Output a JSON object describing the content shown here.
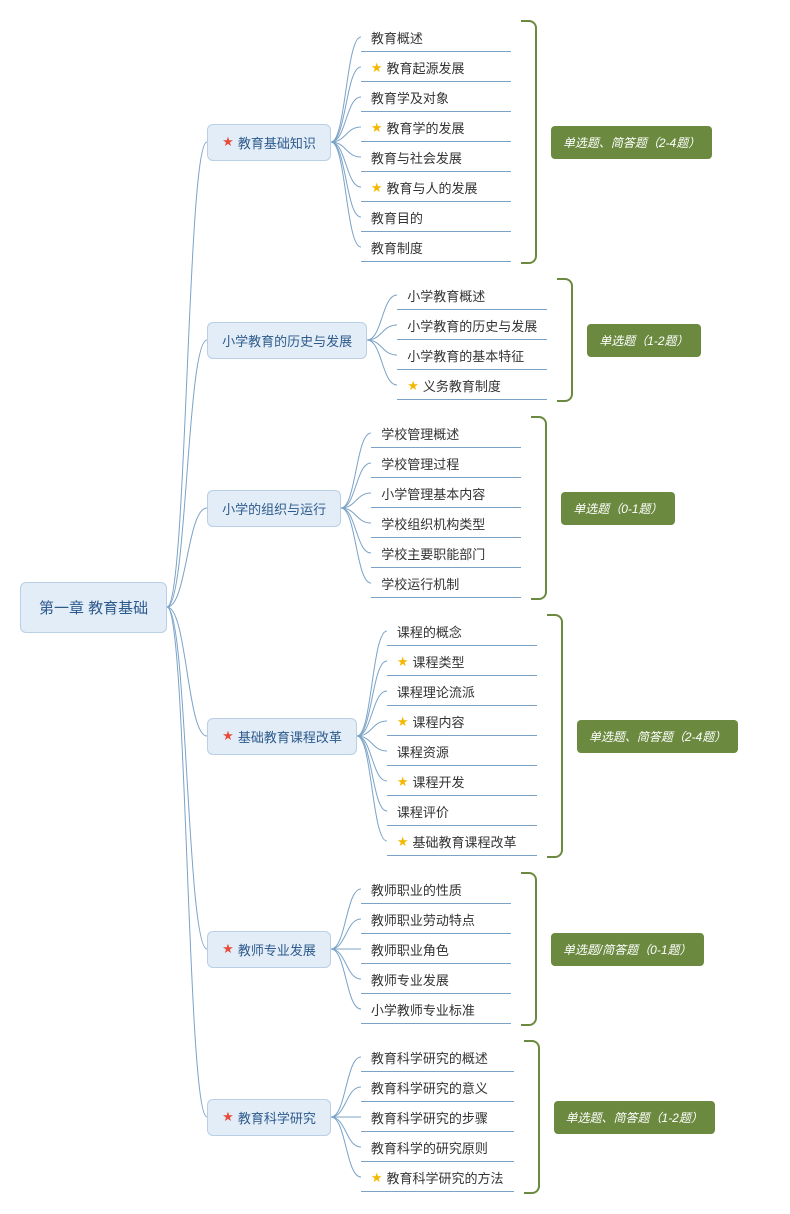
{
  "colors": {
    "node_bg": "#e3edf7",
    "node_border": "#b8cfe5",
    "node_text": "#2d5a8c",
    "line": "#7ba3c7",
    "tag_bg": "#6b8a3f",
    "tag_text": "#ffffff",
    "star_red": "#e74c3c",
    "star_yellow": "#f5b800",
    "leaf_text": "#333333",
    "background": "#ffffff"
  },
  "root": {
    "label": "第一章 教育基础"
  },
  "branches": [
    {
      "star": "red",
      "label": "教育基础知识",
      "tag": "单选题、简答题（2-4题）",
      "leaves": [
        {
          "star": null,
          "label": "教育概述"
        },
        {
          "star": "yellow",
          "label": "教育起源发展"
        },
        {
          "star": null,
          "label": "教育学及对象"
        },
        {
          "star": "yellow",
          "label": "教育学的发展"
        },
        {
          "star": null,
          "label": "教育与社会发展"
        },
        {
          "star": "yellow",
          "label": "教育与人的发展"
        },
        {
          "star": null,
          "label": "教育目的"
        },
        {
          "star": null,
          "label": "教育制度"
        }
      ]
    },
    {
      "star": null,
      "label": "小学教育的历史与发展",
      "tag": "单选题（1-2题）",
      "leaves": [
        {
          "star": null,
          "label": "小学教育概述"
        },
        {
          "star": null,
          "label": "小学教育的历史与发展"
        },
        {
          "star": null,
          "label": "小学教育的基本特征"
        },
        {
          "star": "yellow",
          "label": "义务教育制度"
        }
      ]
    },
    {
      "star": null,
      "label": "小学的组织与运行",
      "tag": "单选题（0-1题）",
      "leaves": [
        {
          "star": null,
          "label": "学校管理概述"
        },
        {
          "star": null,
          "label": "学校管理过程"
        },
        {
          "star": null,
          "label": "小学管理基本内容"
        },
        {
          "star": null,
          "label": "学校组织机构类型"
        },
        {
          "star": null,
          "label": "学校主要职能部门"
        },
        {
          "star": null,
          "label": "学校运行机制"
        }
      ]
    },
    {
      "star": "red",
      "label": "基础教育课程改革",
      "tag": "单选题、简答题（2-4题）",
      "leaves": [
        {
          "star": null,
          "label": "课程的概念"
        },
        {
          "star": "yellow",
          "label": "课程类型"
        },
        {
          "star": null,
          "label": "课程理论流派"
        },
        {
          "star": "yellow",
          "label": "课程内容"
        },
        {
          "star": null,
          "label": "课程资源"
        },
        {
          "star": "yellow",
          "label": "课程开发"
        },
        {
          "star": null,
          "label": "课程评价"
        },
        {
          "star": "yellow",
          "label": "基础教育课程改革"
        }
      ]
    },
    {
      "star": "red",
      "label": "教师专业发展",
      "tag": "单选题/简答题（0-1题）",
      "leaves": [
        {
          "star": null,
          "label": "教师职业的性质"
        },
        {
          "star": null,
          "label": "教师职业劳动特点"
        },
        {
          "star": null,
          "label": "教师职业角色"
        },
        {
          "star": null,
          "label": "教师专业发展"
        },
        {
          "star": null,
          "label": "小学教师专业标准"
        }
      ]
    },
    {
      "star": "red",
      "label": "教育科学研究",
      "tag": "单选题、简答题（1-2题）",
      "leaves": [
        {
          "star": null,
          "label": "教育科学研究的概述"
        },
        {
          "star": null,
          "label": "教育科学研究的意义"
        },
        {
          "star": null,
          "label": "教育科学研究的步骤"
        },
        {
          "star": null,
          "label": "教育科学的研究原则"
        },
        {
          "star": "yellow",
          "label": "教育科学研究的方法"
        }
      ]
    }
  ]
}
